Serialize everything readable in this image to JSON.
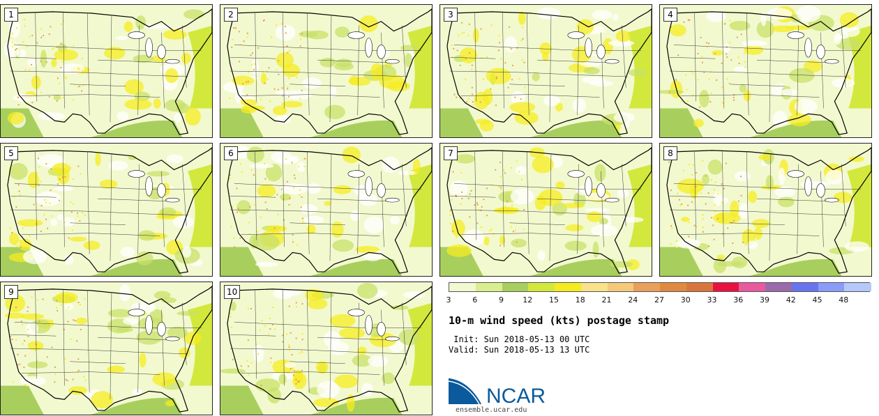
{
  "members": [
    "1",
    "2",
    "3",
    "4",
    "5",
    "6",
    "7",
    "8",
    "9",
    "10"
  ],
  "colorbar": {
    "colors": [
      "#f2f8d0",
      "#d9ee8e",
      "#a8cf5e",
      "#d3e83c",
      "#f5ec20",
      "#f9e28a",
      "#f4c97a",
      "#ea9f5a",
      "#e08940",
      "#d9763e",
      "#e8123f",
      "#e85aa0",
      "#9a6aaa",
      "#6a74ee",
      "#8a9cf8",
      "#b4c8fa"
    ],
    "ticks": [
      "3",
      "6",
      "9",
      "12",
      "15",
      "18",
      "21",
      "24",
      "27",
      "30",
      "33",
      "36",
      "39",
      "42",
      "45",
      "48"
    ]
  },
  "title": "10-m wind speed (kts) postage stamp",
  "init": " Init: Sun 2018-05-13 00 UTC",
  "valid": "Valid: Sun 2018-05-13 13 UTC",
  "logo_text": "NCAR",
  "url": "ensemble.ucar.edu",
  "colors": {
    "map_base": "#f2f9cf",
    "ocean_green": "#a8cf5e",
    "yellow": "#f5ec20",
    "white_patch": "#ffffff",
    "logo_blue": "#0a5a9c"
  }
}
